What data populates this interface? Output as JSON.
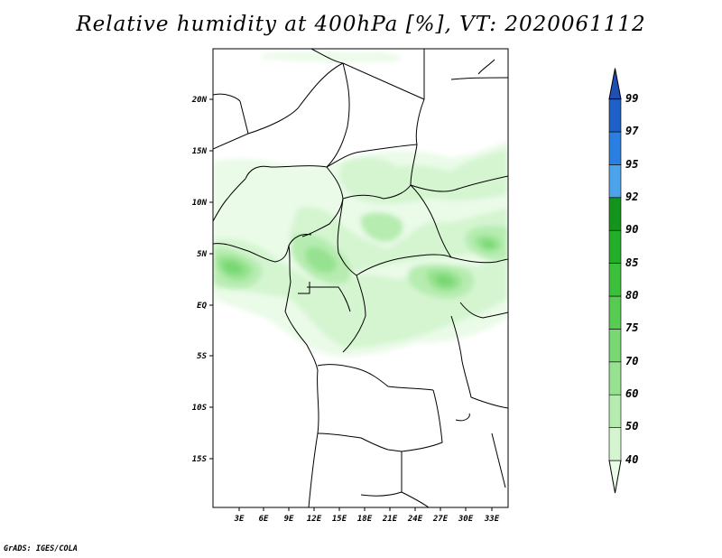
{
  "title": "Relative humidity at 400hPa [%], VT: 2020061112",
  "credit": "GrADS: IGES/COLA",
  "map": {
    "lat_labels": [
      "20N",
      "15N",
      "10N",
      "5N",
      "EQ",
      "5S",
      "10S",
      "15S"
    ],
    "lon_labels": [
      "3E",
      "6E",
      "9E",
      "12E",
      "15E",
      "18E",
      "21E",
      "24E",
      "27E",
      "30E",
      "33E"
    ]
  },
  "colorbar": {
    "levels": [
      "40",
      "50",
      "60",
      "70",
      "75",
      "80",
      "85",
      "90",
      "92",
      "95",
      "97",
      "99"
    ],
    "colors": [
      "#eafbe8",
      "#d4f5d0",
      "#b6ecb0",
      "#96e290",
      "#78d872",
      "#58cc52",
      "#3cbf3a",
      "#24ad28",
      "#12951a",
      "#4da3ea",
      "#2a7fe0",
      "#1f5fc8",
      "#1e50b4"
    ]
  }
}
